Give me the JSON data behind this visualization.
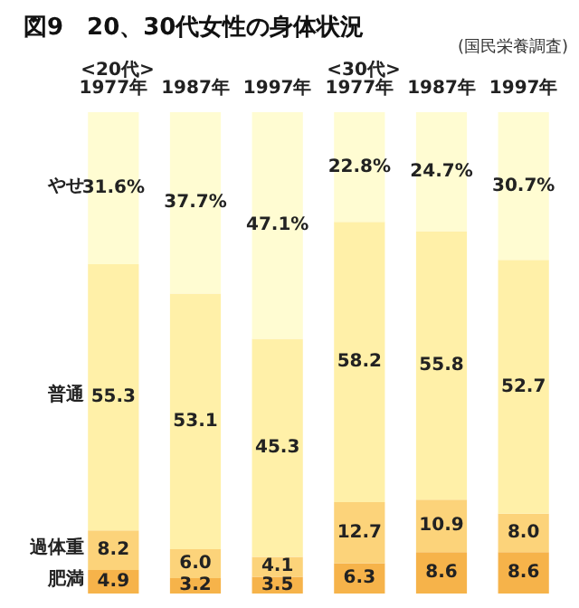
{
  "chart_data": {
    "type": "bar",
    "stacked": true,
    "title": "図9　20、30代女性の身体状況",
    "annotations": [
      "<20代>",
      "<30代>",
      "(国民栄養調査)"
    ],
    "categories": [
      "1977年",
      "1987年",
      "1997年",
      "1977年",
      "1987年",
      "1997年"
    ],
    "series": [
      {
        "name": "肥満",
        "color": "#f6b34a",
        "values": [
          4.9,
          3.2,
          3.5,
          6.3,
          8.6,
          8.6
        ],
        "value_labels": [
          "4.9",
          "3.2",
          "3.5",
          "6.3",
          "8.6",
          "8.6"
        ]
      },
      {
        "name": "過体重",
        "color": "#fcd37a",
        "values": [
          8.2,
          6.0,
          4.1,
          12.7,
          10.9,
          8.0
        ],
        "value_labels": [
          "8.2",
          "6.0",
          "4.1",
          "12.7",
          "10.9",
          "8.0"
        ]
      },
      {
        "name": "普通",
        "color": "#fff0a8",
        "values": [
          55.3,
          53.1,
          45.3,
          58.2,
          55.8,
          52.7
        ],
        "value_labels": [
          "55.3",
          "53.1",
          "45.3",
          "58.2",
          "55.8",
          "52.7"
        ]
      },
      {
        "name": "やせ",
        "color": "#fffcd2",
        "values": [
          31.6,
          37.7,
          47.1,
          22.8,
          24.7,
          30.7
        ],
        "value_labels": [
          "31.6%",
          "37.7%",
          "47.1%",
          "22.8%",
          "24.7%",
          "30.7%"
        ]
      }
    ],
    "legend": false
  }
}
